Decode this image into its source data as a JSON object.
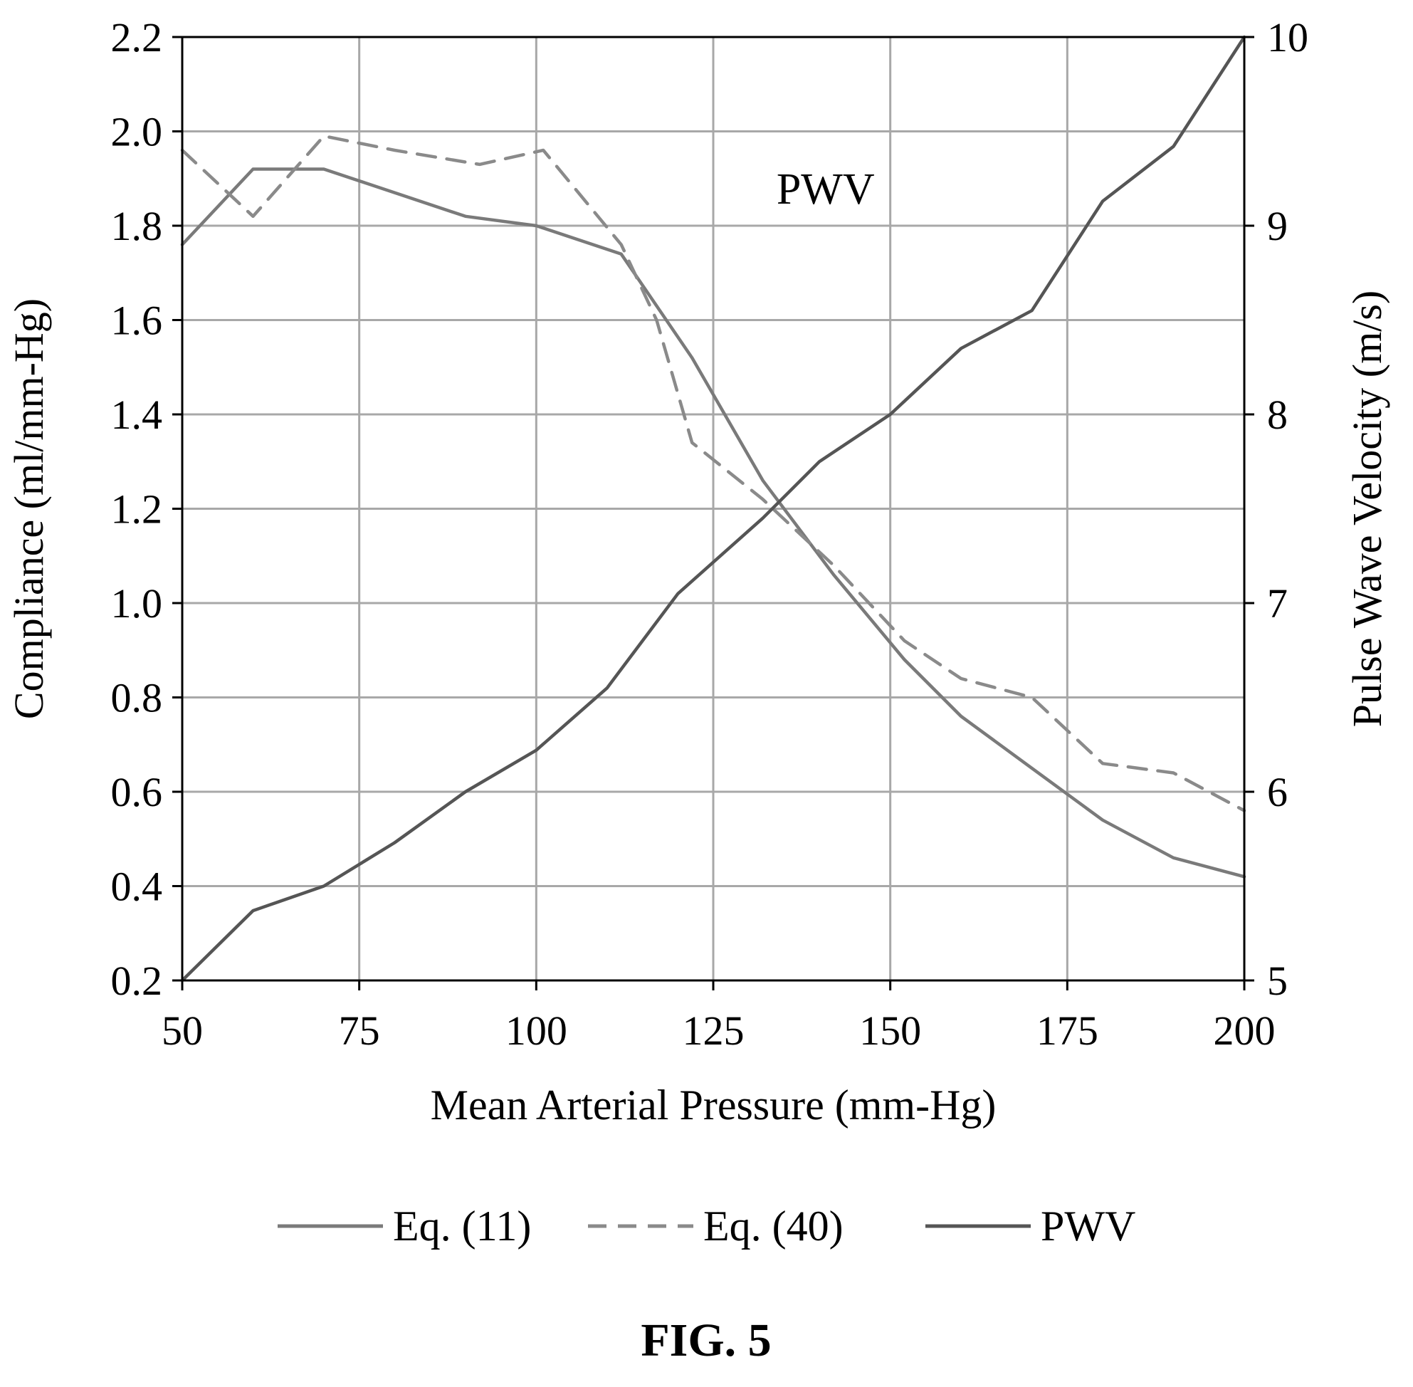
{
  "chart_data": {
    "type": "line",
    "xlabel": "Mean Arterial Pressure (mm-Hg)",
    "ylabel_left": "Compliance (ml/mm-Hg)",
    "ylabel_right": "Pulse Wave Velocity (m/s)",
    "xlim": [
      50,
      200
    ],
    "ylim_left": [
      0.2,
      2.2
    ],
    "ylim_right": [
      5,
      10
    ],
    "xticks": [
      "50",
      "75",
      "100",
      "125",
      "150",
      "175",
      "200"
    ],
    "yticks_left": [
      "0.2",
      "0.4",
      "0.6",
      "0.8",
      "1.0",
      "1.2",
      "1.4",
      "1.6",
      "1.8",
      "2.0",
      "2.2"
    ],
    "yticks_right": [
      "5",
      "6",
      "7",
      "8",
      "9",
      "10"
    ],
    "grid": true,
    "legend_position": "bottom",
    "series": [
      {
        "name": "Eq. (11)",
        "axis": "left",
        "style": "solid",
        "color": "#7a7a7a",
        "x": [
          50,
          60,
          70,
          80,
          90,
          100,
          112,
          122,
          132,
          142,
          152,
          160,
          170,
          180,
          190,
          200
        ],
        "y": [
          1.76,
          1.92,
          1.92,
          1.87,
          1.82,
          1.8,
          1.74,
          1.52,
          1.26,
          1.06,
          0.88,
          0.76,
          0.65,
          0.54,
          0.46,
          0.42
        ]
      },
      {
        "name": "Eq. (40)",
        "axis": "left",
        "style": "dashed",
        "color": "#8a8a8a",
        "x": [
          50,
          60,
          70,
          80,
          92,
          101,
          112,
          117,
          122,
          132,
          142,
          152,
          160,
          170,
          180,
          190,
          200
        ],
        "y": [
          1.96,
          1.82,
          1.99,
          1.96,
          1.93,
          1.96,
          1.76,
          1.6,
          1.34,
          1.22,
          1.08,
          0.92,
          0.84,
          0.8,
          0.66,
          0.64,
          0.56
        ]
      },
      {
        "name": "PWV",
        "axis": "right",
        "style": "solid",
        "color": "#555555",
        "x": [
          50,
          60,
          70,
          80,
          90,
          100,
          110,
          120,
          132,
          140,
          150,
          160,
          170,
          180,
          190,
          200
        ],
        "y": [
          5.0,
          5.37,
          5.5,
          5.73,
          6.0,
          6.22,
          6.55,
          7.05,
          7.45,
          7.75,
          8.0,
          8.35,
          8.55,
          9.13,
          9.42,
          10.0
        ]
      }
    ],
    "annotations": [
      {
        "text": "PWV",
        "x": 147,
        "y_right": 9.2
      }
    ]
  },
  "caption": "FIG. 5"
}
